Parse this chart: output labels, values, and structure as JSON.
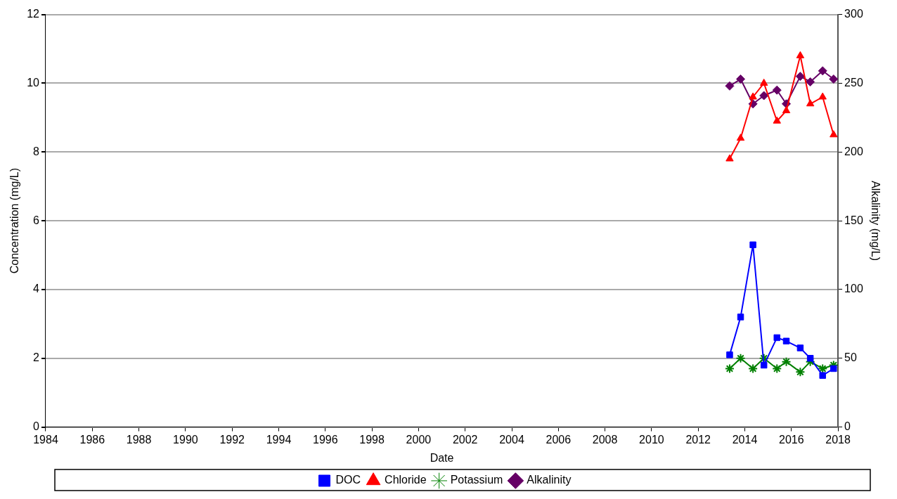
{
  "chart_data": {
    "type": "line",
    "xlabel": "Date",
    "ylabel": "Concentration (mg/L)",
    "y2label": "Alkalinity (mg/L)",
    "x": [
      2013.35,
      2013.82,
      2014.35,
      2014.82,
      2015.38,
      2015.78,
      2016.38,
      2016.81,
      2017.34,
      2017.81
    ],
    "xlim": [
      1984,
      2018
    ],
    "xticks": [
      1984,
      1986,
      1988,
      1990,
      1992,
      1994,
      1996,
      1998,
      2000,
      2002,
      2004,
      2006,
      2008,
      2010,
      2012,
      2014,
      2016,
      2018
    ],
    "ylim": [
      0,
      12
    ],
    "yticks": [
      0,
      2,
      4,
      6,
      8,
      10,
      12
    ],
    "y2lim": [
      0,
      300
    ],
    "y2ticks": [
      0,
      50,
      100,
      150,
      200,
      250,
      300
    ],
    "grid": "y",
    "legend": "bottom",
    "line_style": "solid",
    "series": [
      {
        "name": "DOC",
        "color": "#0000ff",
        "marker": "square",
        "values": [
          2.1,
          3.2,
          5.3,
          1.8,
          2.6,
          2.5,
          2.3,
          2.0,
          1.5,
          1.7
        ]
      },
      {
        "name": "Chloride",
        "color": "#ff0000",
        "marker": "triangle",
        "values": [
          7.8,
          8.4,
          9.6,
          10.0,
          8.9,
          9.2,
          10.8,
          9.4,
          9.6,
          8.5
        ]
      },
      {
        "name": "Potassium",
        "color": "#008000",
        "marker": "cross",
        "values": [
          1.7,
          2.0,
          1.7,
          2.0,
          1.7,
          1.9,
          1.6,
          1.9,
          1.7,
          1.8
        ]
      },
      {
        "name": "Alkalinity",
        "color": "#660066",
        "marker": "diamond",
        "axis": "y2",
        "values": [
          248,
          253,
          235,
          241,
          245,
          235,
          255,
          251,
          259,
          253
        ]
      }
    ]
  }
}
